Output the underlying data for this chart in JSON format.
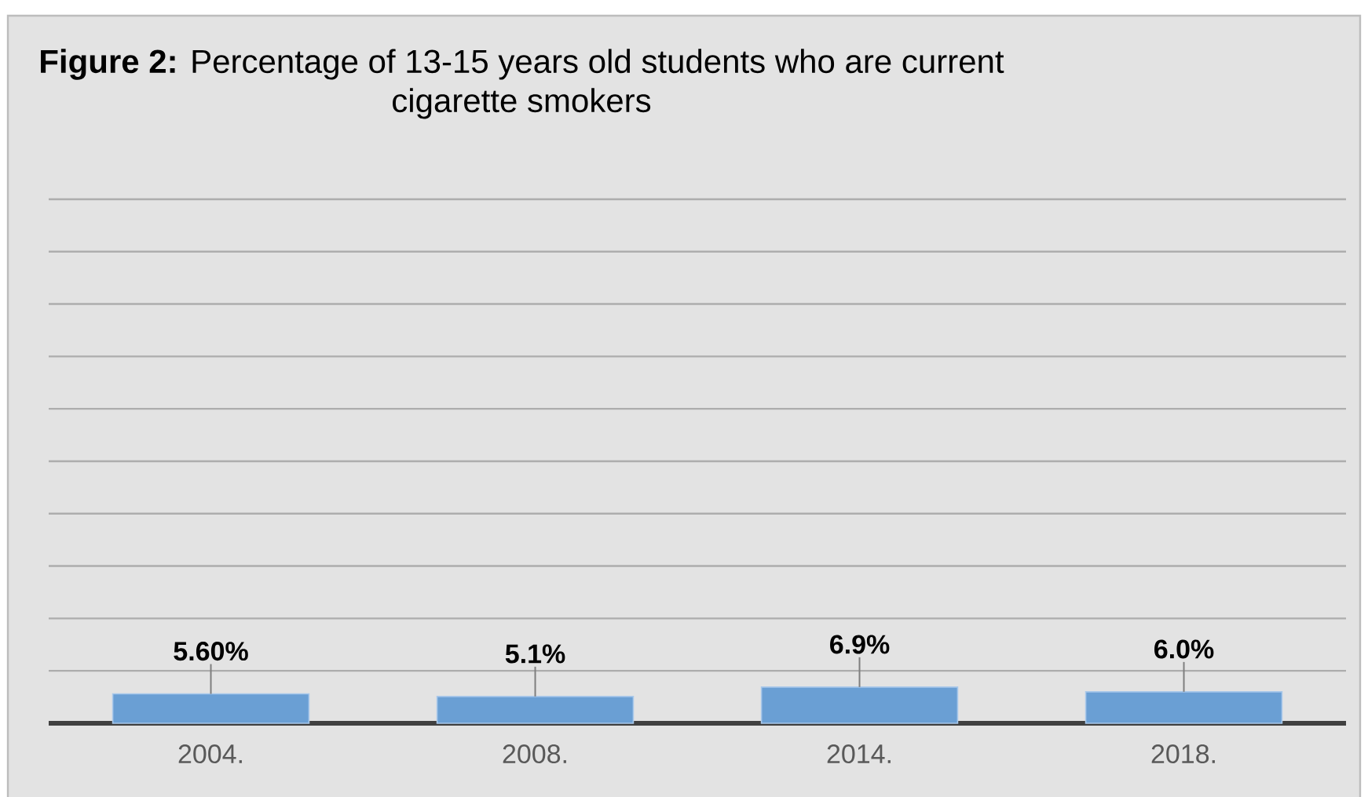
{
  "chart_data": {
    "type": "bar",
    "title": "**Figure 2:** Percentage of 13-15 years old students who are current cigarette smokers",
    "categories": [
      "2004.",
      "2008.",
      "2014.",
      "2018."
    ],
    "values": [
      5.6,
      5.1,
      6.9,
      6.0
    ],
    "value_labels": [
      "5.60%",
      "5.1%",
      "6.9%",
      "6.0%"
    ],
    "color": "#6a9fd4",
    "ylim": [
      0,
      100
    ],
    "yticks": [
      {
        "value": 0,
        "label": null
      },
      {
        "value": 10,
        "label": null
      },
      {
        "value": 20,
        "label": null
      },
      {
        "value": 30,
        "label": null
      },
      {
        "value": 40,
        "label": null
      },
      {
        "value": 50,
        "label": null
      },
      {
        "value": 60,
        "label": null
      },
      {
        "value": 70,
        "label": null
      },
      {
        "value": 80,
        "label": null
      },
      {
        "value": 90,
        "label": null
      },
      {
        "value": 100,
        "label": null
      }
    ],
    "grid": "y",
    "tick_labels": "x"
  }
}
